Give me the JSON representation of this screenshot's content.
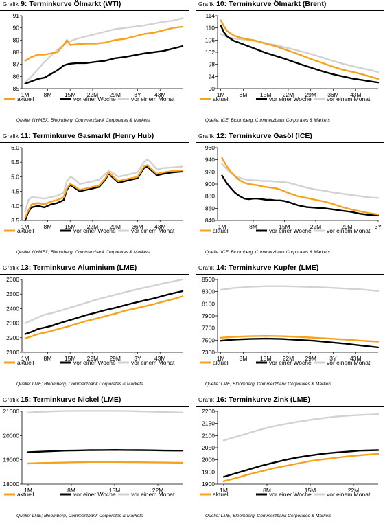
{
  "series_names": [
    "aktuell",
    "vor einer Woche",
    "vor einem Monat"
  ],
  "colors": [
    "#f7a21b",
    "#000000",
    "#d2d2d2"
  ],
  "charts": [
    {
      "type": "line",
      "title_prefix": "Grafik",
      "title_num": "9",
      "title_rest": ": Terminkurve Ölmarkt (WTI)",
      "source": "Quelle: NYMEX; Bloomberg, Commerzbank Corporates & Markets",
      "x_labels": [
        "1M",
        "8M",
        "15M",
        "22M",
        "29M",
        "3Y",
        "43M"
      ],
      "x_label_pos": [
        1,
        8,
        15,
        22,
        29,
        36,
        43
      ],
      "xlim": [
        0,
        50
      ],
      "ylim": [
        85,
        91
      ],
      "yticks": [
        85,
        86,
        87,
        88,
        89,
        90,
        91
      ],
      "x": [
        1,
        3,
        5,
        7,
        9,
        11,
        13,
        14,
        15,
        17,
        20,
        23,
        26,
        29,
        32,
        35,
        38,
        41,
        44,
        47,
        50
      ],
      "series": [
        {
          "name": "aktuell",
          "values": [
            87.3,
            87.6,
            87.8,
            87.8,
            87.9,
            88.0,
            88.6,
            89.0,
            88.6,
            88.65,
            88.7,
            88.7,
            88.8,
            89.0,
            89.1,
            89.3,
            89.5,
            89.6,
            89.8,
            90.0,
            90.1
          ]
        },
        {
          "name": "vor einer Woche",
          "values": [
            85.4,
            85.6,
            85.8,
            85.9,
            86.2,
            86.5,
            86.9,
            87.0,
            87.05,
            87.1,
            87.1,
            87.2,
            87.3,
            87.5,
            87.6,
            87.75,
            87.9,
            88.0,
            88.1,
            88.3,
            88.5
          ]
        },
        {
          "name": "vor einem Monat",
          "values": [
            85.5,
            86.0,
            86.6,
            87.2,
            87.7,
            88.2,
            88.6,
            88.8,
            88.9,
            89.1,
            89.3,
            89.5,
            89.7,
            89.9,
            90.0,
            90.1,
            90.2,
            90.35,
            90.5,
            90.6,
            90.8
          ]
        }
      ]
    },
    {
      "type": "line",
      "title_prefix": "Grafik",
      "title_num": "10",
      "title_rest": ": Terminkurve Ölmarkt (Brent)",
      "source": "Quelle: ICE; Bloomberg, Commerzbank Corporates & Markets",
      "x_labels": [
        "1M",
        "8M",
        "15M",
        "22M",
        "29M",
        "36M",
        "43M"
      ],
      "x_label_pos": [
        1,
        8,
        15,
        22,
        29,
        36,
        43
      ],
      "xlim": [
        0,
        50
      ],
      "ylim": [
        90,
        114
      ],
      "yticks": [
        90,
        94,
        98,
        102,
        106,
        110,
        114
      ],
      "x": [
        1,
        2,
        3,
        5,
        7,
        9,
        11,
        13,
        15,
        18,
        21,
        24,
        27,
        30,
        33,
        36,
        39,
        42,
        45,
        48,
        50
      ],
      "series": [
        {
          "name": "aktuell",
          "values": [
            112.5,
            110.5,
            109,
            107.5,
            106.8,
            106.3,
            106,
            105.5,
            104.8,
            104,
            102.9,
            101.8,
            100.6,
            99.4,
            98.3,
            97.2,
            96.2,
            95.5,
            94.7,
            93.8,
            93.2
          ]
        },
        {
          "name": "vor einer Woche",
          "values": [
            110.8,
            108.5,
            107.2,
            105.8,
            105,
            104.2,
            103.4,
            102.6,
            101.8,
            100.8,
            99.8,
            98.7,
            97.6,
            96.6,
            95.6,
            94.7,
            94,
            93.3,
            92.8,
            92.3,
            92
          ]
        },
        {
          "name": "vor einem Monat",
          "values": [
            108,
            107.5,
            107,
            106.5,
            106.3,
            106.1,
            105.8,
            105.4,
            105,
            104.4,
            103.6,
            102.8,
            102,
            101.1,
            100.1,
            99.1,
            98.2,
            97.4,
            96.7,
            96,
            95.4
          ]
        }
      ]
    },
    {
      "type": "line",
      "title_prefix": "Grafik",
      "title_num": "11",
      "title_rest": ": Terminkurve Gasmarkt (Henry Hub)",
      "source": "Quelle: NYMEX; Bloomberg, Commerzbank Corporates & Markets",
      "x_labels": [
        "1M",
        "8M",
        "15M",
        "22M",
        "29M",
        "36M",
        "43M"
      ],
      "x_label_pos": [
        1,
        8,
        15,
        22,
        29,
        36,
        43
      ],
      "xlim": [
        0,
        50
      ],
      "ylim": [
        3.5,
        6.0
      ],
      "yticks": [
        3.5,
        4.0,
        4.5,
        5.0,
        5.5,
        6.0
      ],
      "x": [
        1,
        2,
        3,
        5,
        7,
        9,
        11,
        13,
        14,
        15,
        16,
        18,
        20,
        22,
        24,
        26,
        27,
        28,
        30,
        32,
        34,
        36,
        38,
        39,
        40,
        42,
        44,
        47,
        50
      ],
      "series": [
        {
          "name": "aktuell",
          "values": [
            3.6,
            3.85,
            4.05,
            4.1,
            4.05,
            4.15,
            4.2,
            4.3,
            4.6,
            4.75,
            4.7,
            4.55,
            4.6,
            4.65,
            4.7,
            4.95,
            5.15,
            5.05,
            4.85,
            4.9,
            4.95,
            5.0,
            5.35,
            5.4,
            5.3,
            5.1,
            5.15,
            5.2,
            5.22
          ]
        },
        {
          "name": "vor einer Woche",
          "values": [
            3.5,
            3.8,
            3.95,
            4.0,
            3.95,
            4.05,
            4.1,
            4.2,
            4.55,
            4.72,
            4.65,
            4.5,
            4.55,
            4.6,
            4.65,
            4.9,
            5.12,
            5.0,
            4.8,
            4.85,
            4.9,
            4.95,
            5.3,
            5.35,
            5.25,
            5.05,
            5.1,
            5.15,
            5.18
          ]
        },
        {
          "name": "vor einem Monat",
          "values": [
            3.8,
            4.2,
            4.3,
            4.28,
            4.25,
            4.3,
            4.35,
            4.45,
            4.85,
            5.0,
            4.95,
            4.75,
            4.8,
            4.85,
            4.9,
            5.1,
            5.2,
            5.15,
            5.0,
            5.05,
            5.1,
            5.15,
            5.5,
            5.6,
            5.5,
            5.25,
            5.3,
            5.32,
            5.35
          ]
        }
      ]
    },
    {
      "type": "line",
      "title_prefix": "Grafik",
      "title_num": "12",
      "title_rest": ": Terminkurve Gasöl (ICE)",
      "source": "Quelle: ICE; Bloomberg, Commerzbank Corporates & Markets",
      "x_labels": [
        "1M",
        "8M",
        "15M",
        "22M",
        "29M",
        "3Y"
      ],
      "x_label_pos": [
        1,
        8,
        15,
        22,
        29,
        36
      ],
      "xlim": [
        0,
        36
      ],
      "ylim": [
        840,
        960
      ],
      "yticks": [
        840,
        860,
        880,
        900,
        920,
        940,
        960
      ],
      "x": [
        1,
        2,
        3,
        4,
        5,
        6,
        7,
        8,
        9,
        10,
        11,
        12,
        13,
        14,
        15,
        16,
        18,
        20,
        22,
        24,
        26,
        28,
        30,
        32,
        34,
        36
      ],
      "series": [
        {
          "name": "aktuell",
          "values": [
            943,
            930,
            920,
            912,
            906,
            902,
            900,
            899,
            898,
            896,
            895,
            894,
            893,
            891,
            888,
            885,
            880,
            877,
            874,
            871,
            867,
            862,
            858,
            855,
            852,
            850
          ]
        },
        {
          "name": "vor einer Woche",
          "values": [
            914,
            902,
            893,
            885,
            880,
            876,
            875,
            876,
            876,
            875,
            874,
            874,
            873,
            873,
            872,
            870,
            865,
            862,
            861,
            860,
            858,
            856,
            854,
            851,
            849,
            848
          ]
        },
        {
          "name": "vor einem Monat",
          "values": [
            933,
            925,
            918,
            913,
            910,
            908,
            907,
            906,
            906,
            905,
            905,
            905,
            904,
            904,
            903,
            902,
            898,
            894,
            891,
            889,
            886,
            884,
            882,
            880,
            878,
            877
          ]
        }
      ]
    },
    {
      "type": "line",
      "title_prefix": "Grafik",
      "title_num": "13",
      "title_rest": ": Terminkurve Aluminium (LME)",
      "source": "Quelle: LME; Bloomberg, Commerzbank Corporates & Markets",
      "x_labels": [
        "1M",
        "8M",
        "15M",
        "22M",
        "29M",
        "3Y",
        "43M"
      ],
      "x_label_pos": [
        1,
        8,
        15,
        22,
        29,
        36,
        43
      ],
      "xlim": [
        0,
        50
      ],
      "ylim": [
        2100,
        2600
      ],
      "yticks": [
        2100,
        2200,
        2300,
        2400,
        2500,
        2600
      ],
      "x": [
        1,
        3,
        5,
        7,
        9,
        11,
        14,
        17,
        20,
        23,
        26,
        29,
        32,
        35,
        38,
        41,
        44,
        47,
        50
      ],
      "series": [
        {
          "name": "aktuell",
          "values": [
            2195,
            2210,
            2225,
            2235,
            2245,
            2258,
            2275,
            2295,
            2315,
            2330,
            2348,
            2365,
            2385,
            2400,
            2415,
            2430,
            2448,
            2465,
            2485
          ]
        },
        {
          "name": "vor einer Woche",
          "values": [
            2225,
            2240,
            2260,
            2270,
            2280,
            2295,
            2315,
            2335,
            2355,
            2372,
            2390,
            2405,
            2423,
            2440,
            2455,
            2470,
            2488,
            2505,
            2520
          ]
        },
        {
          "name": "vor einem Monat",
          "values": [
            2300,
            2320,
            2340,
            2358,
            2368,
            2380,
            2400,
            2420,
            2440,
            2460,
            2478,
            2495,
            2512,
            2528,
            2543,
            2558,
            2573,
            2587,
            2600
          ]
        }
      ]
    },
    {
      "type": "line",
      "title_prefix": "Grafik",
      "title_num": "14",
      "title_rest": ": Terminkurve Kupfer (LME)",
      "source": "Quelle: LME; Bloomberg, Commerzbank Corporates & Markets",
      "x_labels": [
        "1M",
        "8M",
        "15M",
        "22M",
        "29M",
        "3Y",
        "43M"
      ],
      "x_label_pos": [
        1,
        8,
        15,
        22,
        29,
        36,
        43
      ],
      "xlim": [
        0,
        50
      ],
      "ylim": [
        7300,
        8500
      ],
      "yticks": [
        7300,
        7500,
        7700,
        7900,
        8100,
        8300,
        8500
      ],
      "x": [
        1,
        5,
        10,
        15,
        20,
        25,
        30,
        35,
        40,
        45,
        50
      ],
      "series": [
        {
          "name": "aktuell",
          "values": [
            7540,
            7555,
            7565,
            7570,
            7565,
            7555,
            7540,
            7525,
            7510,
            7490,
            7475
          ]
        },
        {
          "name": "vor einer Woche",
          "values": [
            7490,
            7510,
            7520,
            7525,
            7520,
            7505,
            7490,
            7465,
            7440,
            7410,
            7380
          ]
        },
        {
          "name": "vor einem Monat",
          "values": [
            8330,
            8360,
            8380,
            8390,
            8390,
            8385,
            8375,
            8365,
            8350,
            8335,
            8310
          ]
        }
      ]
    },
    {
      "type": "line",
      "title_prefix": "Grafik",
      "title_num": "15",
      "title_rest": ": Terminkurve Nickel (LME)",
      "source": "Quelle: LME; Bloomberg, Commerzbank Corporates & Markets",
      "x_labels": [
        "1M",
        "8M",
        "15M",
        "22M"
      ],
      "x_label_pos": [
        1,
        8,
        15,
        22
      ],
      "xlim": [
        0,
        26
      ],
      "ylim": [
        18000,
        21000
      ],
      "yticks": [
        18000,
        19000,
        20000,
        21000
      ],
      "x": [
        1,
        3,
        5,
        7,
        9,
        11,
        13,
        15,
        17,
        19,
        21,
        23,
        26
      ],
      "series": [
        {
          "name": "aktuell",
          "values": [
            18850,
            18870,
            18880,
            18890,
            18900,
            18910,
            18910,
            18910,
            18905,
            18900,
            18895,
            18890,
            18880
          ]
        },
        {
          "name": "vor einer Woche",
          "values": [
            19320,
            19340,
            19360,
            19380,
            19390,
            19400,
            19405,
            19410,
            19405,
            19400,
            19395,
            19385,
            19380
          ]
        },
        {
          "name": "vor einem Monat",
          "values": [
            20950,
            20980,
            21000,
            21010,
            21020,
            21020,
            21020,
            21020,
            21010,
            21000,
            20990,
            20970,
            20950
          ]
        }
      ]
    },
    {
      "type": "line",
      "title_prefix": "Grafik",
      "title_num": "16",
      "title_rest": ": Terminkurve Zink (LME)",
      "source": "Quelle: LME; Bloomberg, Commerzbank Corporates & Markets",
      "x_labels": [
        "1M",
        "8M",
        "15M",
        "22M"
      ],
      "x_label_pos": [
        1,
        8,
        15,
        22
      ],
      "xlim": [
        0,
        26
      ],
      "ylim": [
        1900,
        2200
      ],
      "yticks": [
        1900,
        1950,
        2000,
        2050,
        2100,
        2150,
        2200
      ],
      "x": [
        1,
        3,
        5,
        7,
        9,
        11,
        13,
        15,
        17,
        19,
        21,
        23,
        26
      ],
      "series": [
        {
          "name": "aktuell",
          "values": [
            1912,
            1925,
            1940,
            1952,
            1965,
            1975,
            1985,
            1995,
            2002,
            2008,
            2014,
            2019,
            2025
          ]
        },
        {
          "name": "vor einer Woche",
          "values": [
            1930,
            1945,
            1960,
            1975,
            1988,
            2000,
            2010,
            2018,
            2025,
            2030,
            2034,
            2038,
            2040
          ]
        },
        {
          "name": "vor einem Monat",
          "values": [
            2080,
            2095,
            2110,
            2125,
            2138,
            2148,
            2157,
            2165,
            2172,
            2178,
            2182,
            2185,
            2188
          ]
        }
      ]
    }
  ]
}
